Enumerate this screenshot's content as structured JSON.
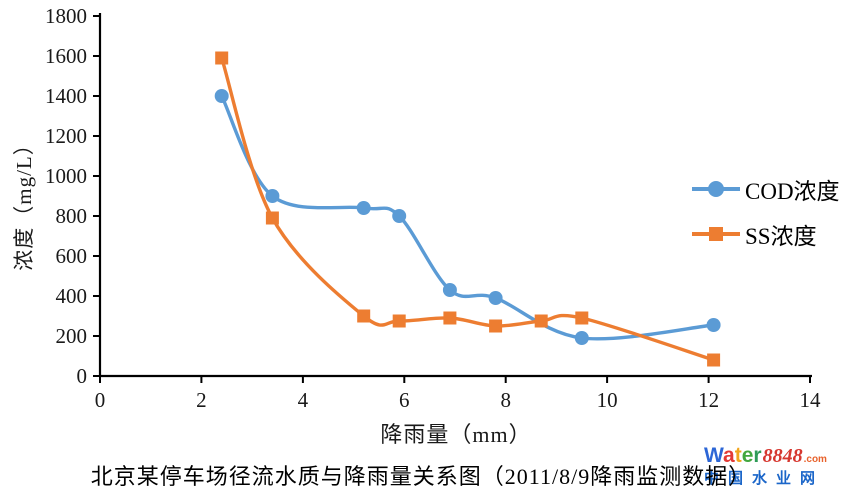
{
  "chart_data": {
    "type": "line",
    "title": "北京某停车场径流水质与降雨量关系图（2011/8/9降雨监测数据）",
    "xlabel": "降雨量（mm）",
    "ylabel": "浓度（mg/L）",
    "xlim": [
      0,
      14
    ],
    "ylim": [
      0,
      1800
    ],
    "xticks": [
      0,
      2,
      4,
      6,
      8,
      10,
      12,
      14
    ],
    "yticks": [
      0,
      200,
      400,
      600,
      800,
      1000,
      1200,
      1400,
      1600,
      1800
    ],
    "grid": false,
    "legend_position": "right",
    "line_style": "smooth",
    "series": [
      {
        "name": "COD浓度",
        "color": "#5B9BD5",
        "marker": "circle",
        "x": [
          2.4,
          3.4,
          5.2,
          5.9,
          6.9,
          7.8,
          9.5,
          12.1
        ],
        "y": [
          1400,
          900,
          840,
          800,
          430,
          390,
          190,
          255
        ]
      },
      {
        "name": "SS浓度",
        "color": "#ED7D31",
        "marker": "square",
        "x": [
          2.4,
          3.4,
          5.2,
          5.9,
          6.9,
          7.8,
          8.7,
          9.5,
          12.1
        ],
        "y": [
          1590,
          790,
          300,
          275,
          290,
          250,
          275,
          290,
          80
        ]
      }
    ]
  },
  "caption": "北京某停车场径流水质与降雨量关系图（2011/8/9降雨监测数据）",
  "axis": {
    "color": "#000000",
    "x_label": "降雨量（mm）",
    "y_label": "浓度（mg/L）"
  },
  "watermark": {
    "brand_letters": [
      {
        "ch": "W",
        "color": "#2c66d6"
      },
      {
        "ch": "a",
        "color": "#e33a35"
      },
      {
        "ch": "t",
        "color": "#f2a51c"
      },
      {
        "ch": "e",
        "color": "#42a73e"
      },
      {
        "ch": "r",
        "color": "#2e9b57"
      }
    ],
    "number": "8848",
    "number_color": "#d6372f",
    "tld": ".com",
    "tld_color": "#e8622c",
    "site_name": "中国水业网",
    "site_color": "#1b66c9"
  }
}
